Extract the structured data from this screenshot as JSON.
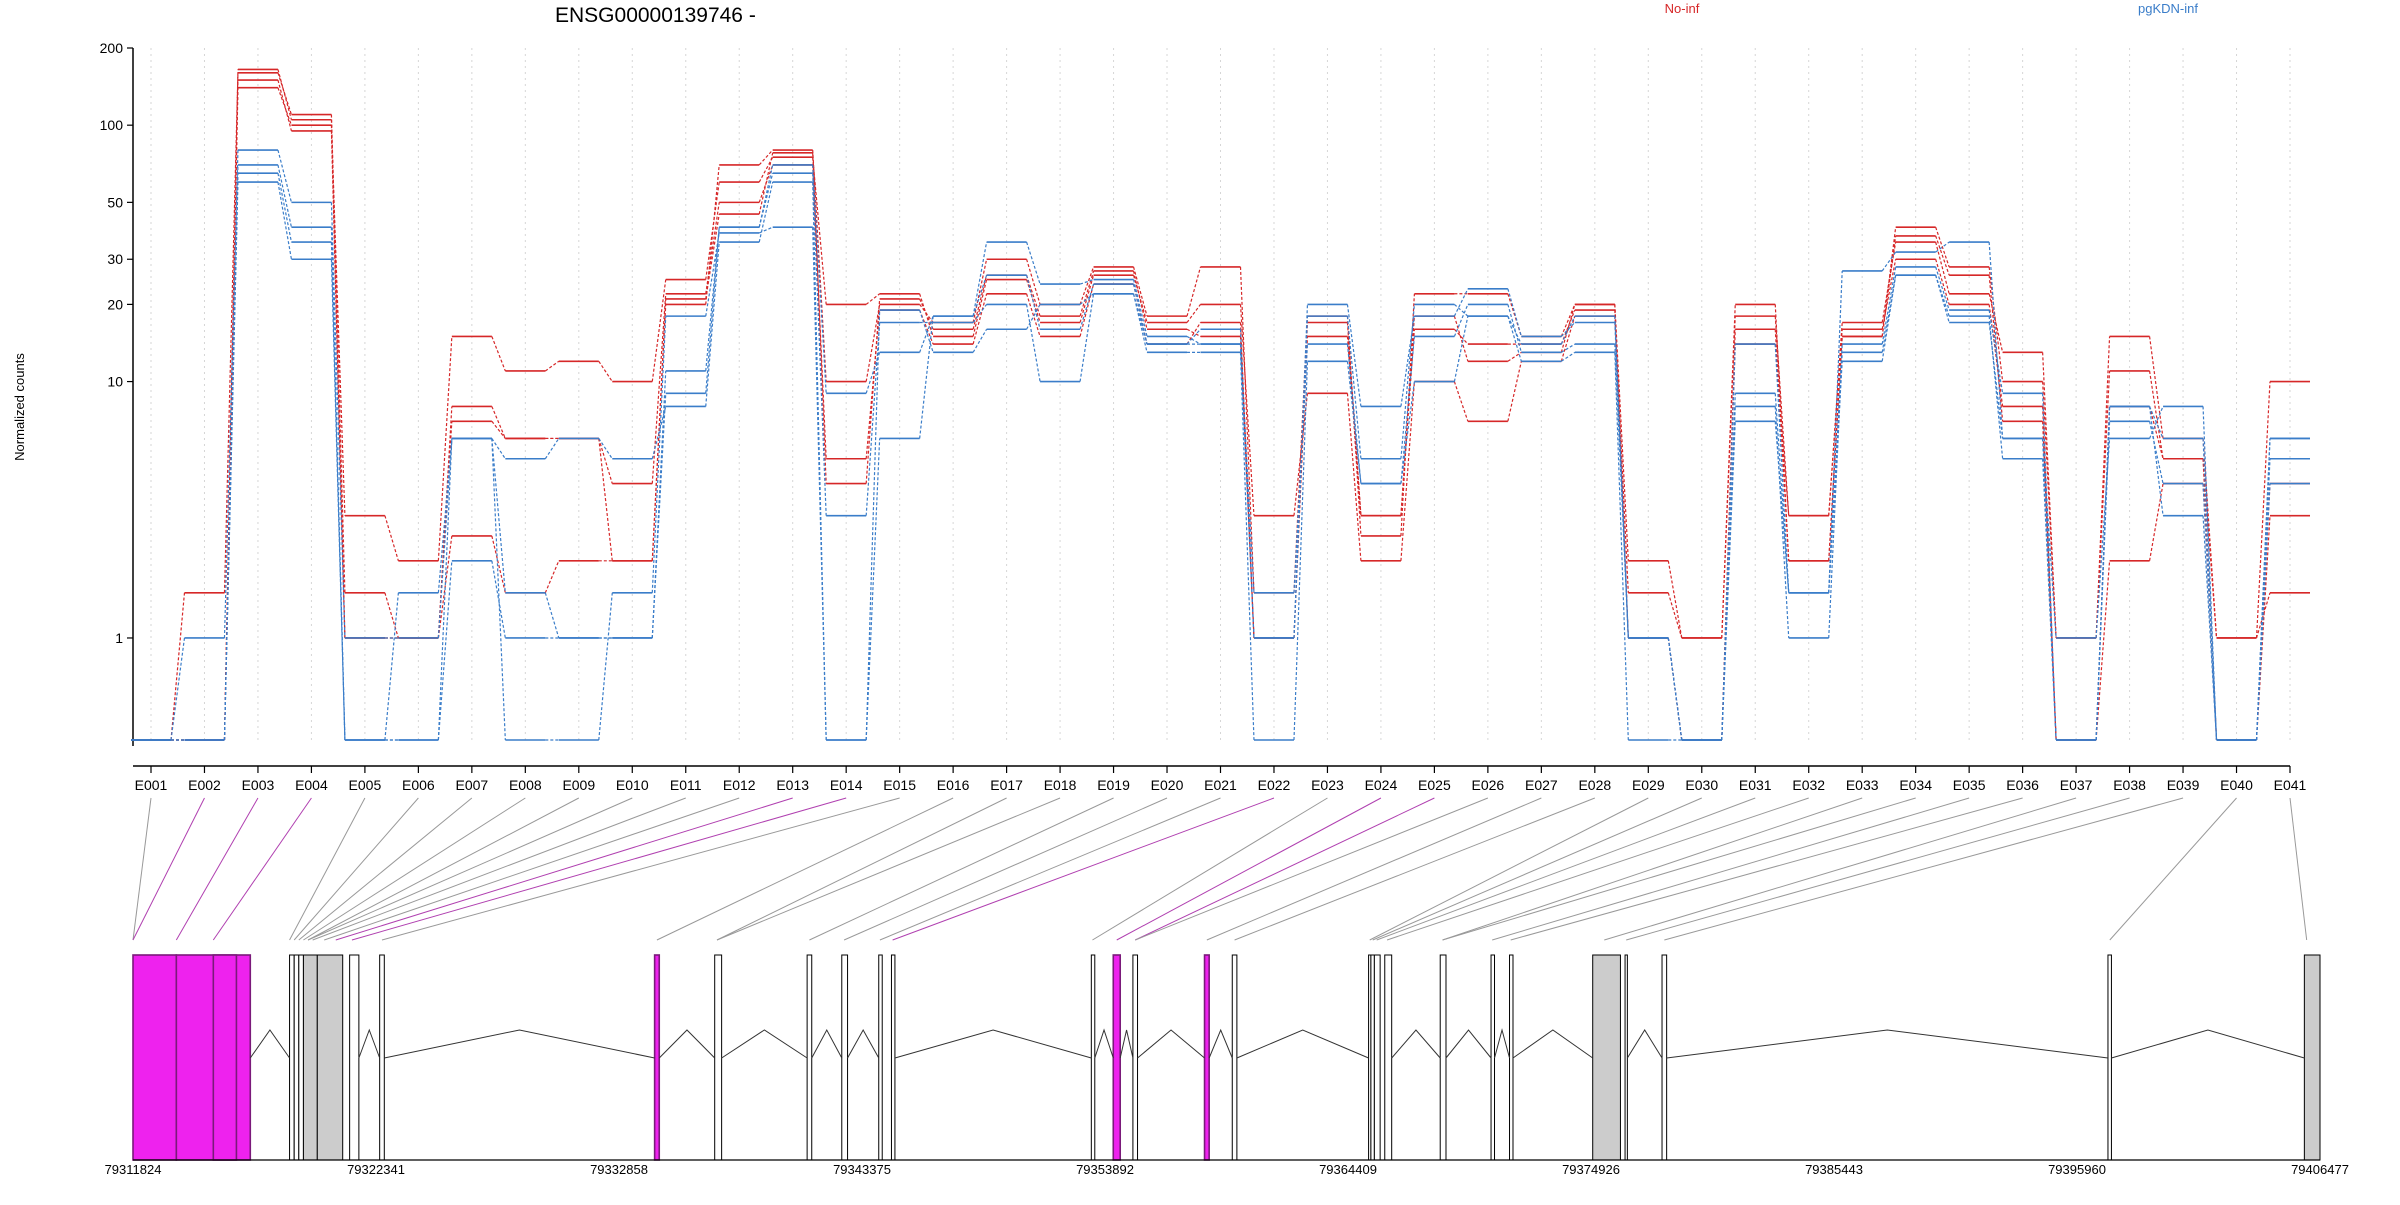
{
  "chart_data": {
    "type": "line",
    "title": "ENSG00000139746 -",
    "ylabel": "Normalized counts",
    "y_scale": "log",
    "ylim": [
      0.4,
      200
    ],
    "y_ticks": [
      {
        "label": "200",
        "value": 200
      },
      {
        "label": "100",
        "value": 100
      },
      {
        "label": "50",
        "value": 50
      },
      {
        "label": "30",
        "value": 30
      },
      {
        "label": "20",
        "value": 20
      },
      {
        "label": "10",
        "value": 10
      },
      {
        "label": "1",
        "value": 1
      }
    ],
    "categories": [
      "E001",
      "E002",
      "E003",
      "E004",
      "E005",
      "E006",
      "E007",
      "E008",
      "E009",
      "E010",
      "E011",
      "E012",
      "E013",
      "E014",
      "E015",
      "E016",
      "E017",
      "E018",
      "E019",
      "E020",
      "E021",
      "E022",
      "E023",
      "E024",
      "E025",
      "E026",
      "E027",
      "E028",
      "E029",
      "E030",
      "E031",
      "E032",
      "E033",
      "E034",
      "E035",
      "E036",
      "E037",
      "E038",
      "E039",
      "E040",
      "E041"
    ],
    "legend": [
      {
        "label": "No-inf",
        "color": "#d62728"
      },
      {
        "label": "pgKDN-inf",
        "color": "#3a7dc9"
      }
    ],
    "legend_placement": "top",
    "grid": "vertical dotted",
    "series": [
      {
        "group": "No-inf",
        "color": "#d62728",
        "values": [
          0.4,
          1.5,
          160,
          110,
          1.5,
          1,
          2.5,
          1.5,
          2,
          2,
          20,
          70,
          80,
          10,
          20,
          17,
          30,
          20,
          28,
          18,
          28,
          1.5,
          18,
          2.5,
          22,
          22,
          15,
          20,
          2,
          1,
          20,
          2,
          15,
          40,
          28,
          10,
          1,
          15,
          6,
          1,
          1.5
        ]
      },
      {
        "group": "No-inf",
        "color": "#d62728",
        "values": [
          0.4,
          0.4,
          140,
          100,
          3,
          2,
          15,
          11,
          12,
          10,
          25,
          60,
          75,
          20,
          22,
          15,
          25,
          17,
          26,
          17,
          20,
          3,
          9,
          2,
          10,
          7,
          12,
          18,
          1.5,
          1,
          18,
          3,
          17,
          35,
          22,
          13,
          1,
          11,
          5,
          1,
          10
        ]
      },
      {
        "group": "No-inf",
        "color": "#d62728",
        "values": [
          0.4,
          0.4,
          150,
          95,
          1,
          1,
          8,
          6,
          6,
          4,
          22,
          50,
          70,
          5,
          19,
          14,
          22,
          15,
          24,
          14,
          17,
          1,
          17,
          3,
          16,
          14,
          14,
          19,
          1,
          0.4,
          14,
          3,
          16,
          30,
          20,
          8,
          0.4,
          8,
          5,
          0.4,
          3
        ]
      },
      {
        "group": "No-inf",
        "color": "#d62728",
        "values": [
          0.4,
          0.4,
          165,
          105,
          1,
          1,
          7,
          6,
          6,
          2,
          21,
          45,
          78,
          4,
          21,
          16,
          26,
          18,
          27,
          16,
          15,
          1,
          15,
          3,
          18,
          12,
          13,
          20,
          1,
          0.4,
          16,
          2,
          15,
          37,
          26,
          7,
          0.4,
          2,
          4,
          0.4,
          4
        ]
      },
      {
        "group": "pgKDN-inf",
        "color": "#3a7dc9",
        "values": [
          0.4,
          1,
          80,
          50,
          1,
          1,
          6,
          5,
          6,
          5,
          8,
          35,
          60,
          0.4,
          6,
          18,
          35,
          24,
          25,
          15,
          14,
          1,
          20,
          8,
          18,
          23,
          15,
          17,
          1,
          0.4,
          7,
          1.5,
          27,
          32,
          35,
          6,
          1,
          6,
          8,
          0.4,
          6
        ]
      },
      {
        "group": "pgKDN-inf",
        "color": "#3a7dc9",
        "values": [
          0.4,
          0.4,
          70,
          40,
          0.4,
          1.5,
          6,
          1.5,
          1,
          1,
          9,
          40,
          65,
          3,
          17,
          17,
          20,
          10,
          22,
          14,
          14,
          1.5,
          14,
          4,
          15,
          20,
          13,
          14,
          1,
          0.4,
          14,
          1.5,
          14,
          28,
          19,
          9,
          0.4,
          8,
          3,
          0.4,
          5
        ]
      },
      {
        "group": "pgKDN-inf",
        "color": "#3a7dc9",
        "values": [
          0.4,
          0.4,
          65,
          35,
          0.4,
          0.4,
          2,
          1,
          1,
          1,
          11,
          40,
          70,
          9,
          13,
          18,
          26,
          16,
          24,
          14,
          16,
          1,
          18,
          5,
          20,
          18,
          14,
          18,
          1,
          0.4,
          9,
          1.5,
          12,
          26,
          17,
          6,
          0.4,
          8,
          6,
          0.4,
          4
        ]
      },
      {
        "group": "pgKDN-inf",
        "color": "#3a7dc9",
        "values": [
          0.4,
          0.4,
          60,
          30,
          0.4,
          0.4,
          6,
          0.4,
          0.4,
          1.5,
          18,
          38,
          40,
          0.4,
          19,
          13,
          16,
          20,
          22,
          13,
          13,
          0.4,
          12,
          4,
          10,
          18,
          12,
          13,
          0.4,
          0.4,
          8,
          1,
          13,
          26,
          18,
          5,
          0.4,
          7,
          4,
          0.4,
          6
        ]
      }
    ]
  },
  "gene_model": {
    "coordinate_labels": [
      "79311824",
      "79322341",
      "79332858",
      "79343375",
      "79353892",
      "79364409",
      "79374926",
      "79385443",
      "79395960",
      "79406477"
    ],
    "coord_start": 79311824,
    "coord_end": 79406477,
    "highlight_color": "#ee22ee",
    "exon_fill": "#cccccc"
  }
}
